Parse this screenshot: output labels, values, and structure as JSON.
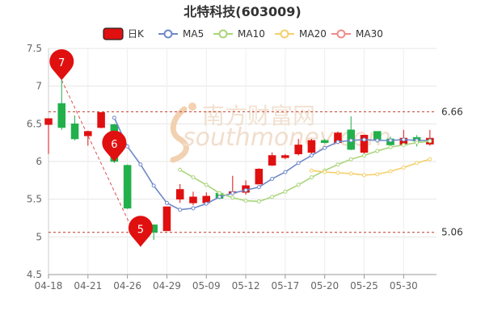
{
  "chart_data": {
    "type": "candlestick",
    "title": "北特科技(603009)",
    "legend": [
      {
        "key": "k",
        "label": "日K",
        "color": "#e01010"
      },
      {
        "key": "ma5",
        "label": "MA5",
        "color": "#6f88c8"
      },
      {
        "key": "ma10",
        "label": "MA10",
        "color": "#a9d57b"
      },
      {
        "key": "ma20",
        "label": "MA20",
        "color": "#f5cf6a"
      },
      {
        "key": "ma30",
        "label": "MA30",
        "color": "#f08b8b"
      }
    ],
    "legend_position": "top-center",
    "up_color": "#e01010",
    "down_color": "#21b04b",
    "ylim": [
      4.5,
      7.5
    ],
    "yticks": [
      "4.5",
      "5",
      "5.5",
      "6",
      "6.5",
      "7",
      "7.5"
    ],
    "ytick_values": [
      4.5,
      5,
      5.5,
      6,
      6.5,
      7,
      7.5
    ],
    "xticks": [
      {
        "label": "04-18",
        "index": 0
      },
      {
        "label": "04-21",
        "index": 3
      },
      {
        "label": "04-26",
        "index": 6
      },
      {
        "label": "04-29",
        "index": 9
      },
      {
        "label": "05-09",
        "index": 12
      },
      {
        "label": "05-12",
        "index": 15
      },
      {
        "label": "05-17",
        "index": 18
      },
      {
        "label": "05-20",
        "index": 21
      },
      {
        "label": "05-25",
        "index": 24
      },
      {
        "label": "05-30",
        "index": 27
      }
    ],
    "grid": true,
    "candles": [
      {
        "o": 6.49,
        "c": 6.57,
        "h": 6.57,
        "l": 6.1
      },
      {
        "o": 6.77,
        "c": 6.45,
        "h": 7.08,
        "l": 6.42
      },
      {
        "o": 6.5,
        "c": 6.3,
        "h": 6.61,
        "l": 6.28
      },
      {
        "o": 6.34,
        "c": 6.4,
        "h": 6.41,
        "l": 6.21
      },
      {
        "o": 6.45,
        "c": 6.65,
        "h": 6.65,
        "l": 6.44
      },
      {
        "o": 6.49,
        "c": 6.0,
        "h": 6.5,
        "l": 5.98
      },
      {
        "o": 5.95,
        "c": 5.38,
        "h": 5.96,
        "l": 5.37
      },
      {
        "o": 5.1,
        "c": 5.18,
        "h": 5.2,
        "l": 4.87
      },
      {
        "o": 5.16,
        "c": 5.06,
        "h": 5.16,
        "l": 4.96
      },
      {
        "o": 5.08,
        "c": 5.4,
        "h": 5.4,
        "l": 5.08
      },
      {
        "o": 5.5,
        "c": 5.63,
        "h": 5.7,
        "l": 5.45
      },
      {
        "o": 5.45,
        "c": 5.53,
        "h": 5.6,
        "l": 5.42
      },
      {
        "o": 5.45,
        "c": 5.54,
        "h": 5.59,
        "l": 5.42
      },
      {
        "o": 5.58,
        "c": 5.51,
        "h": 5.59,
        "l": 5.5
      },
      {
        "o": 5.58,
        "c": 5.6,
        "h": 5.81,
        "l": 5.56
      },
      {
        "o": 5.59,
        "c": 5.68,
        "h": 5.75,
        "l": 5.56
      },
      {
        "o": 5.7,
        "c": 5.9,
        "h": 5.91,
        "l": 5.7
      },
      {
        "o": 5.95,
        "c": 6.08,
        "h": 6.12,
        "l": 5.94
      },
      {
        "o": 6.05,
        "c": 6.08,
        "h": 6.1,
        "l": 6.03
      },
      {
        "o": 6.1,
        "c": 6.22,
        "h": 6.3,
        "l": 6.08
      },
      {
        "o": 6.12,
        "c": 6.28,
        "h": 6.3,
        "l": 6.1
      },
      {
        "o": 6.28,
        "c": 6.25,
        "h": 6.3,
        "l": 6.24
      },
      {
        "o": 6.25,
        "c": 6.38,
        "h": 6.4,
        "l": 6.23
      },
      {
        "o": 6.42,
        "c": 6.16,
        "h": 6.6,
        "l": 6.15
      },
      {
        "o": 6.12,
        "c": 6.35,
        "h": 6.35,
        "l": 6.1
      },
      {
        "o": 6.4,
        "c": 6.29,
        "h": 6.4,
        "l": 6.25
      },
      {
        "o": 6.3,
        "c": 6.22,
        "h": 6.33,
        "l": 6.18
      },
      {
        "o": 6.22,
        "c": 6.31,
        "h": 6.42,
        "l": 6.2
      },
      {
        "o": 6.32,
        "c": 6.27,
        "h": 6.35,
        "l": 6.2
      },
      {
        "o": 6.23,
        "c": 6.31,
        "h": 6.42,
        "l": 6.21
      }
    ],
    "ma5": [
      null,
      null,
      null,
      null,
      null,
      6.58,
      6.2,
      5.96,
      5.68,
      5.45,
      5.36,
      5.38,
      5.44,
      5.53,
      5.58,
      5.62,
      5.66,
      5.77,
      5.86,
      5.98,
      6.08,
      6.18,
      6.26,
      6.28,
      6.29,
      6.28,
      6.28,
      6.29,
      6.28,
      6.28
    ],
    "ma10": [
      null,
      null,
      null,
      null,
      null,
      null,
      null,
      null,
      null,
      null,
      5.89,
      5.79,
      5.69,
      5.58,
      5.52,
      5.48,
      5.47,
      5.53,
      5.6,
      5.69,
      5.79,
      5.88,
      5.96,
      6.03,
      6.08,
      6.14,
      6.19,
      6.22,
      6.25,
      6.27
    ],
    "ma20": [
      null,
      null,
      null,
      null,
      null,
      null,
      null,
      null,
      null,
      null,
      null,
      null,
      null,
      null,
      null,
      null,
      null,
      null,
      null,
      null,
      5.88,
      5.86,
      5.85,
      5.84,
      5.82,
      5.83,
      5.87,
      5.92,
      5.98,
      6.03
    ],
    "ma30": [],
    "ref_lines": [
      {
        "value": 6.66,
        "label": "6.66"
      },
      {
        "value": 5.06,
        "label": "5.06"
      }
    ],
    "markers": [
      {
        "label": "7",
        "index": 1,
        "value": 7.08
      },
      {
        "label": "6",
        "index": 5,
        "value": 6.0
      },
      {
        "label": "5",
        "index": 7,
        "value": 4.87
      }
    ],
    "watermark": {
      "cn": "南方财富网",
      "en": "southmoney.com"
    }
  }
}
